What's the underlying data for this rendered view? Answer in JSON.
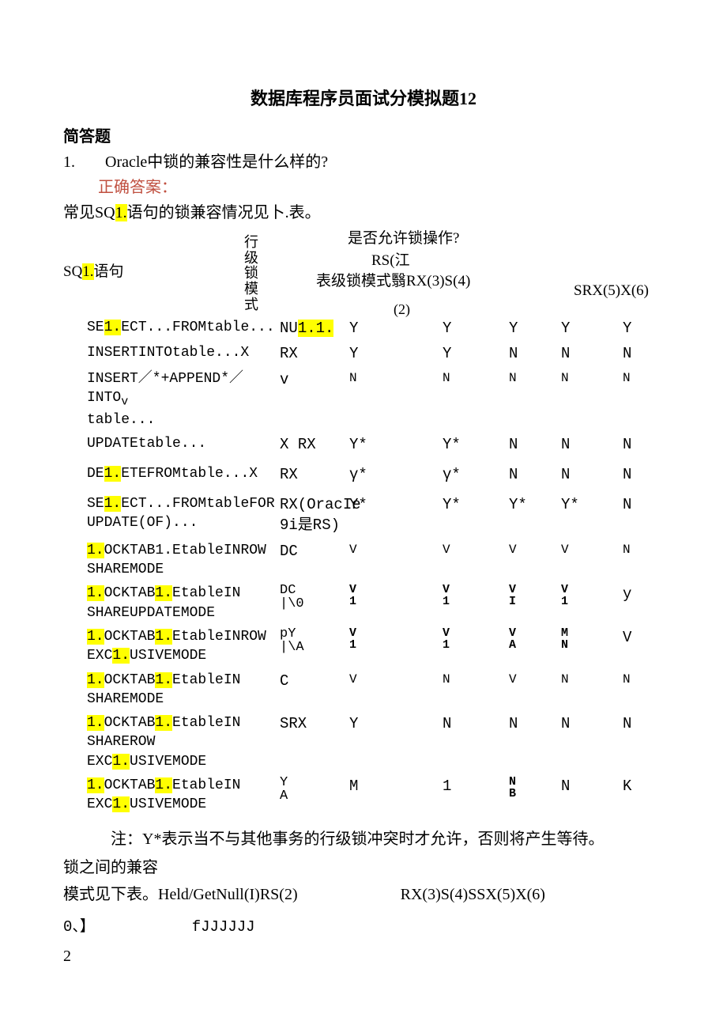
{
  "colors": {
    "text": "#000000",
    "highlight": "#ffff00",
    "answer_label": "#c05040",
    "background": "#ffffff"
  },
  "title": "数据库程序员面试分模拟题12",
  "section": "简答题",
  "question": {
    "num": "1.",
    "text": "Oracle中锁的兼容性是什么样的?"
  },
  "answer_label": "正确答案：",
  "intro": {
    "pre": "常见SQ",
    "hl": "1.",
    "post": "语句的锁兼容情况见卜.表。"
  },
  "head": {
    "sql": {
      "pre": "SQ",
      "hl": "1.",
      "post": "语句"
    },
    "rowmode": "行级锁模式",
    "allow": "是否允许锁操作?",
    "rs": "RS(江",
    "mode_label": "表级锁模式翳RX(3)S(4)",
    "srx": "SRX(5)X(6)",
    "sub2": "(2)"
  },
  "rows": [
    {
      "c1": [
        {
          "t": "SE"
        },
        {
          "hl": "1."
        },
        {
          "t": "ECT...FROMtable..."
        }
      ],
      "c2": "",
      "c3": [
        {
          "t": "NU"
        },
        {
          "hl": "1.1."
        }
      ],
      "c4": "Y",
      "c5": "Y",
      "c6": "Y",
      "c7": "Y",
      "c8": "Y"
    },
    {
      "c1": [
        {
          "t": "INSERTINTOtable...X"
        }
      ],
      "c2": "",
      "c3": "RX",
      "c4": "Y",
      "c5": "Y",
      "c6": "N",
      "c7": "N",
      "c8": "N"
    },
    {
      "multi": true,
      "c1": [
        {
          "t": "INSERT／*+APPEND*／INTO"
        },
        {
          "sub": "v"
        },
        {
          "br": true
        },
        {
          "t": "table..."
        }
      ],
      "c2": "",
      "c3": "v",
      "c4": "N",
      "c5": "N",
      "c6": "N",
      "c7": "N",
      "c8": "N",
      "smallvals": true
    },
    {
      "c1": [
        {
          "t": "UPDATEtable..."
        }
      ],
      "c2": "X",
      "c3": "RX",
      "c4": "Y*",
      "c5": "Y*",
      "c6": "N",
      "c7": "N",
      "c8": "N"
    },
    {
      "tall": true,
      "c1": [
        {
          "t": "DE"
        },
        {
          "hl": "1."
        },
        {
          "t": "ETEFROMtable...X"
        }
      ],
      "c2": "",
      "c3": "RX",
      "c4": "γ*",
      "c5": "γ*",
      "c6": "N",
      "c7": "N",
      "c8": "N"
    },
    {
      "multi": true,
      "c1": [
        {
          "t": "SE"
        },
        {
          "hl": "1."
        },
        {
          "t": "ECT...FROMtableFOR"
        },
        {
          "br": true
        },
        {
          "t": "UPDATE(OF)..."
        }
      ],
      "c2": "",
      "c3": [
        "RX(OracIe",
        "9i是RS)"
      ],
      "c4": "Y*",
      "c5": "Y*",
      "c6": "Y*",
      "c7": "Y*",
      "c8": "N"
    },
    {
      "multi": true,
      "c1": [
        {
          "hl": "1."
        },
        {
          "t": "OCKTAB1.EtableINROW"
        },
        {
          "br": true
        },
        {
          "t": "SHAREMODE"
        }
      ],
      "c2": "",
      "c3": "DC",
      "c4": "V",
      "c5": "V",
      "c6": "V",
      "c7": "V",
      "c8": "N",
      "smallvals": true
    },
    {
      "multi": true,
      "c1": [
        {
          "hl": "1."
        },
        {
          "t": "OCKTAB"
        },
        {
          "hl": "1."
        },
        {
          "t": "EtableIN"
        },
        {
          "br": true
        },
        {
          "t": "SHAREUPDATEMODE"
        }
      ],
      "c2": "",
      "c3": [
        "DC",
        "|\\0"
      ],
      "c4": [
        "V",
        "1"
      ],
      "c5": [
        "V",
        "1"
      ],
      "c6": [
        "V",
        "I"
      ],
      "c7": [
        "V",
        "1"
      ],
      "c8": "y",
      "stack": true
    },
    {
      "multi": true,
      "c1": [
        {
          "hl": "1."
        },
        {
          "t": "OCKTAB"
        },
        {
          "hl": "1."
        },
        {
          "t": "EtableINROW"
        },
        {
          "br": true
        },
        {
          "t": "EXC"
        },
        {
          "hl": "1."
        },
        {
          "t": "USIVEMODE"
        }
      ],
      "c2": "",
      "c3": [
        "pY",
        "|\\A"
      ],
      "c4": [
        "V",
        "1"
      ],
      "c5": [
        "V",
        "1"
      ],
      "c6": [
        "V",
        "A"
      ],
      "c7": [
        "M",
        "N"
      ],
      "c8": "V",
      "stack": true
    },
    {
      "multi": true,
      "c1": [
        {
          "hl": "1."
        },
        {
          "t": "OCKTAB"
        },
        {
          "hl": "1."
        },
        {
          "t": "EtableIN"
        },
        {
          "br": true
        },
        {
          "t": "SHAREMODE"
        }
      ],
      "c2": "",
      "c3": "C",
      "c4": "V",
      "c5": "N",
      "c6": "V",
      "c7": "N",
      "c8": "N",
      "smallvals": true
    },
    {
      "multi": true,
      "c1": [
        {
          "hl": "1."
        },
        {
          "t": "OCKTAB"
        },
        {
          "hl": "1."
        },
        {
          "t": "EtableIN"
        },
        {
          "br": true
        },
        {
          "t": "SHAREROW"
        },
        {
          "br": true
        },
        {
          "t": "EXC"
        },
        {
          "hl": "1."
        },
        {
          "t": "USIVEMODE"
        }
      ],
      "c2": "",
      "c3": "SRX",
      "c4": "Y",
      "c5": "N",
      "c6": "N",
      "c7": "N",
      "c8": "N"
    },
    {
      "multi": true,
      "c1": [
        {
          "hl": "1."
        },
        {
          "t": "OCKTAB"
        },
        {
          "hl": "1."
        },
        {
          "t": "EtableIN"
        },
        {
          "br": true
        },
        {
          "t": "EXC"
        },
        {
          "hl": "1."
        },
        {
          "t": "USIVEMODE"
        }
      ],
      "c2": "",
      "c3": [
        "Y",
        "A"
      ],
      "c4": "M",
      "c5": "1",
      "c6": [
        "N",
        "B"
      ],
      "c7": "N",
      "c8": "K",
      "stack": true
    }
  ],
  "note": "注：Y*表示当不与其他事务的行级锁冲突时才允许，否则将产生等待。",
  "post1": "锁之间的兼容",
  "post2_a": "模式见下表。Held/GetNull(I)RS(2)",
  "post2_b": "RX(3)S(4)SSX(5)X(6)",
  "jline_a": "0、】",
  "jline_b": "fJJJJJJ",
  "two": "2"
}
